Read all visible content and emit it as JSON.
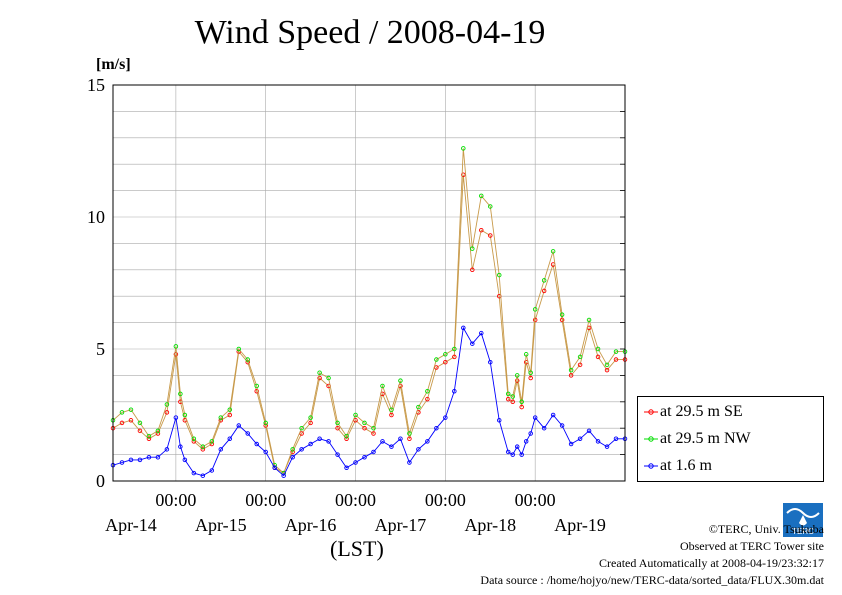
{
  "title": "Wind Speed / 2008-04-19",
  "unit_label": "[m/s]",
  "xlabel": "(LST)",
  "time_labels": [
    "00:00",
    "00:00",
    "00:00",
    "00:00",
    "00:00"
  ],
  "day_labels": [
    "Apr-14",
    "Apr-15",
    "Apr-16",
    "Apr-17",
    "Apr-18",
    "Apr-19"
  ],
  "footer": {
    "copyright": "©TERC, Univ. Tsukuba",
    "observed": "Observed at TERC Tower site",
    "created": "Created Automatically at 2008-04-19/23:32:17",
    "source": "Data source : /home/hojyo/new/TERC-data/sorted_data/FLUX.30m.dat"
  },
  "logo_text": "TERC",
  "colors": {
    "se": "#ff0000",
    "nw": "#00dd00",
    "low": "#0000ff",
    "line": "#c89a4a",
    "grid": "#aaaaaa"
  },
  "chart_data": {
    "type": "line",
    "x_unit": "day (2008-04)",
    "xlim": [
      13.3,
      19.0
    ],
    "ylim": [
      0,
      15
    ],
    "yticks": [
      0,
      5,
      10,
      15
    ],
    "grid": true,
    "legend_position": "right",
    "series": [
      {
        "name": "at 29.5 m SE",
        "key": "se",
        "x": [
          13.3,
          13.4,
          13.5,
          13.6,
          13.7,
          13.8,
          13.9,
          14.0,
          14.05,
          14.1,
          14.2,
          14.3,
          14.4,
          14.5,
          14.6,
          14.7,
          14.8,
          14.9,
          15.0,
          15.1,
          15.2,
          15.3,
          15.4,
          15.5,
          15.6,
          15.7,
          15.8,
          15.9,
          16.0,
          16.1,
          16.2,
          16.3,
          16.4,
          16.5,
          16.6,
          16.7,
          16.8,
          16.9,
          17.0,
          17.1,
          17.2,
          17.3,
          17.4,
          17.5,
          17.6,
          17.7,
          17.75,
          17.8,
          17.85,
          17.9,
          17.95,
          18.0,
          18.1,
          18.2,
          18.3,
          18.4,
          18.5,
          18.6,
          18.7,
          18.8,
          18.9,
          19.0
        ],
        "values": [
          2.0,
          2.2,
          2.3,
          1.9,
          1.6,
          1.8,
          2.6,
          4.8,
          3.0,
          2.3,
          1.5,
          1.2,
          1.4,
          2.3,
          2.5,
          4.9,
          4.5,
          3.4,
          2.1,
          0.5,
          0.3,
          1.1,
          1.8,
          2.2,
          3.9,
          3.6,
          2.0,
          1.6,
          2.3,
          2.0,
          1.8,
          3.3,
          2.5,
          3.6,
          1.6,
          2.6,
          3.1,
          4.3,
          4.5,
          4.7,
          11.6,
          8.0,
          9.5,
          9.3,
          7.0,
          3.1,
          3.0,
          3.8,
          2.8,
          4.5,
          3.9,
          6.1,
          7.2,
          8.2,
          6.1,
          4.0,
          4.4,
          5.8,
          4.7,
          4.2,
          4.6,
          4.6
        ]
      },
      {
        "name": "at 29.5 m NW",
        "key": "nw",
        "x": [
          13.3,
          13.4,
          13.5,
          13.6,
          13.7,
          13.8,
          13.9,
          14.0,
          14.05,
          14.1,
          14.2,
          14.3,
          14.4,
          14.5,
          14.6,
          14.7,
          14.8,
          14.9,
          15.0,
          15.1,
          15.2,
          15.3,
          15.4,
          15.5,
          15.6,
          15.7,
          15.8,
          15.9,
          16.0,
          16.1,
          16.2,
          16.3,
          16.4,
          16.5,
          16.6,
          16.7,
          16.8,
          16.9,
          17.0,
          17.1,
          17.2,
          17.3,
          17.4,
          17.5,
          17.6,
          17.7,
          17.75,
          17.8,
          17.85,
          17.9,
          17.95,
          18.0,
          18.1,
          18.2,
          18.3,
          18.4,
          18.5,
          18.6,
          18.7,
          18.8,
          18.9,
          19.0
        ],
        "values": [
          2.3,
          2.6,
          2.7,
          2.2,
          1.7,
          1.9,
          2.9,
          5.1,
          3.3,
          2.5,
          1.6,
          1.3,
          1.5,
          2.4,
          2.7,
          5.0,
          4.6,
          3.6,
          2.2,
          0.6,
          0.3,
          1.2,
          2.0,
          2.4,
          4.1,
          3.9,
          2.2,
          1.7,
          2.5,
          2.2,
          2.0,
          3.6,
          2.7,
          3.8,
          1.8,
          2.8,
          3.4,
          4.6,
          4.8,
          5.0,
          12.6,
          8.8,
          10.8,
          10.4,
          7.8,
          3.3,
          3.2,
          4.0,
          3.0,
          4.8,
          4.1,
          6.5,
          7.6,
          8.7,
          6.3,
          4.2,
          4.7,
          6.1,
          5.0,
          4.4,
          4.9,
          4.9
        ]
      },
      {
        "name": "at 1.6 m",
        "key": "low",
        "x": [
          13.3,
          13.4,
          13.5,
          13.6,
          13.7,
          13.8,
          13.9,
          14.0,
          14.05,
          14.1,
          14.2,
          14.3,
          14.4,
          14.5,
          14.6,
          14.7,
          14.8,
          14.9,
          15.0,
          15.1,
          15.2,
          15.3,
          15.4,
          15.5,
          15.6,
          15.7,
          15.8,
          15.9,
          16.0,
          16.1,
          16.2,
          16.3,
          16.4,
          16.5,
          16.6,
          16.7,
          16.8,
          16.9,
          17.0,
          17.1,
          17.2,
          17.3,
          17.4,
          17.5,
          17.6,
          17.7,
          17.75,
          17.8,
          17.85,
          17.9,
          17.95,
          18.0,
          18.1,
          18.2,
          18.3,
          18.4,
          18.5,
          18.6,
          18.7,
          18.8,
          18.9,
          19.0
        ],
        "values": [
          0.6,
          0.7,
          0.8,
          0.8,
          0.9,
          0.9,
          1.2,
          2.4,
          1.3,
          0.8,
          0.3,
          0.2,
          0.4,
          1.2,
          1.6,
          2.1,
          1.8,
          1.4,
          1.1,
          0.5,
          0.2,
          0.9,
          1.2,
          1.4,
          1.6,
          1.5,
          1.0,
          0.5,
          0.7,
          0.9,
          1.1,
          1.5,
          1.3,
          1.6,
          0.7,
          1.2,
          1.5,
          2.0,
          2.4,
          3.4,
          5.8,
          5.2,
          5.6,
          4.5,
          2.3,
          1.1,
          1.0,
          1.3,
          1.0,
          1.5,
          1.8,
          2.4,
          2.0,
          2.5,
          2.1,
          1.4,
          1.6,
          1.9,
          1.5,
          1.3,
          1.6,
          1.6
        ]
      }
    ]
  }
}
